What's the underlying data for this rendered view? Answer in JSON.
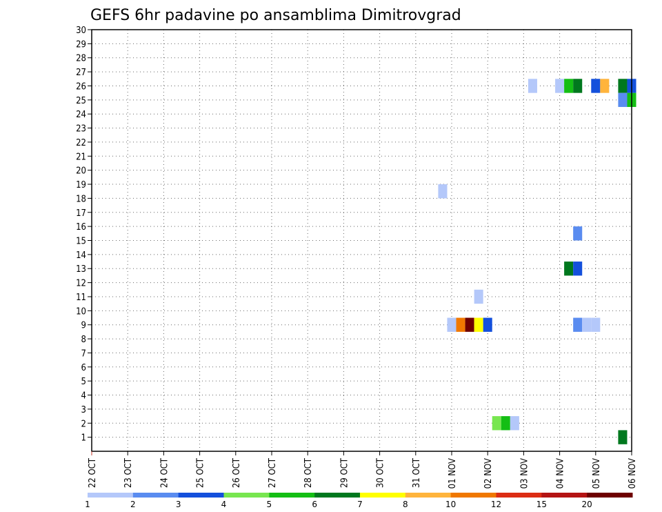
{
  "chart_data": {
    "type": "heatmap",
    "title": "GEFS 6hr padavine po ansamblima Dimitrovgrad",
    "xlabel": "",
    "ylabel": "",
    "x_tick_labels": [
      "22 OCT",
      "23 OCT",
      "24 OCT",
      "25 OCT",
      "26 OCT",
      "27 OCT",
      "28 OCT",
      "29 OCT",
      "30 OCT",
      "31 OCT",
      "01 NOV",
      "02 NOV",
      "03 NOV",
      "04 NOV",
      "05 NOV",
      "06 NOV"
    ],
    "y_tick_labels": [
      "1",
      "2",
      "3",
      "4",
      "5",
      "6",
      "7",
      "8",
      "9",
      "10",
      "11",
      "12",
      "13",
      "14",
      "15",
      "16",
      "17",
      "18",
      "19",
      "20",
      "21",
      "22",
      "23",
      "24",
      "25",
      "26",
      "27",
      "28",
      "29",
      "30"
    ],
    "xlim_days": [
      0,
      15
    ],
    "ylim": [
      0,
      30
    ],
    "grid": true,
    "colorscale": {
      "labels": [
        "1",
        "2",
        "3",
        "4",
        "5",
        "6",
        "7",
        "8",
        "10",
        "12",
        "15",
        "20"
      ],
      "colors": [
        "#b4c8fa",
        "#5a8cf0",
        "#1450dc",
        "#78e650",
        "#14be14",
        "#00781e",
        "#ffff00",
        "#ffb43c",
        "#f07800",
        "#dc2d14",
        "#b41414",
        "#6e0000"
      ]
    },
    "cells": [
      {
        "day": 9.75,
        "member": 18.5,
        "color": "#b4c8fa"
      },
      {
        "day": 10.0,
        "member": 9,
        "color": "#b4c8fa"
      },
      {
        "day": 10.25,
        "member": 9,
        "color": "#f07800"
      },
      {
        "day": 10.5,
        "member": 9,
        "color": "#6e0000"
      },
      {
        "day": 10.75,
        "member": 9,
        "color": "#ffff00"
      },
      {
        "day": 11.0,
        "member": 9,
        "color": "#1450dc"
      },
      {
        "day": 10.75,
        "member": 11,
        "color": "#b4c8fa"
      },
      {
        "day": 11.25,
        "member": 2,
        "color": "#78e650"
      },
      {
        "day": 11.5,
        "member": 2,
        "color": "#14be14"
      },
      {
        "day": 11.75,
        "member": 2,
        "color": "#b4c8fa"
      },
      {
        "day": 12.25,
        "member": 26,
        "color": "#b4c8fa"
      },
      {
        "day": 13.0,
        "member": 26,
        "color": "#b4c8fa"
      },
      {
        "day": 13.25,
        "member": 26,
        "color": "#14be14"
      },
      {
        "day": 13.5,
        "member": 26,
        "color": "#00781e"
      },
      {
        "day": 13.25,
        "member": 13,
        "color": "#00781e"
      },
      {
        "day": 13.5,
        "member": 13,
        "color": "#1450dc"
      },
      {
        "day": 13.5,
        "member": 15.5,
        "color": "#5a8cf0"
      },
      {
        "day": 13.5,
        "member": 9,
        "color": "#5a8cf0"
      },
      {
        "day": 13.75,
        "member": 9,
        "color": "#b4c8fa"
      },
      {
        "day": 14.0,
        "member": 9,
        "color": "#b4c8fa"
      },
      {
        "day": 14.0,
        "member": 26,
        "color": "#1450dc"
      },
      {
        "day": 14.25,
        "member": 26,
        "color": "#ffb43c"
      },
      {
        "day": 14.75,
        "member": 26,
        "color": "#00781e"
      },
      {
        "day": 15.0,
        "member": 26,
        "color": "#1450dc"
      },
      {
        "day": 14.75,
        "member": 25,
        "color": "#5a8cf0"
      },
      {
        "day": 15.0,
        "member": 25,
        "color": "#14be14"
      },
      {
        "day": 14.75,
        "member": 1,
        "color": "#00781e"
      }
    ]
  }
}
